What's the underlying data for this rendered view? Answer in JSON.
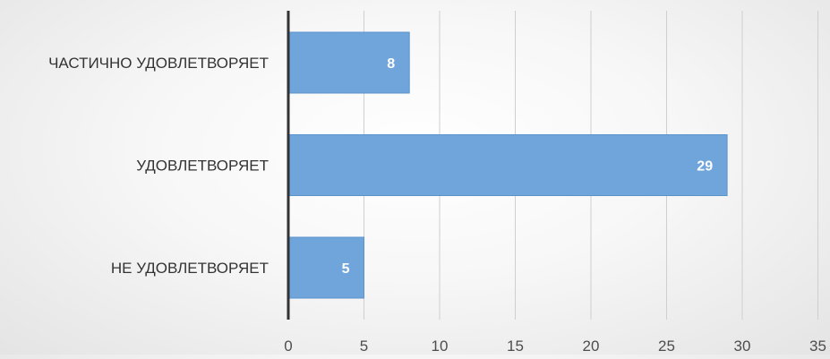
{
  "chart_data": {
    "type": "bar",
    "orientation": "horizontal",
    "categories": [
      "ЧАСТИЧНО УДОВЛЕТВОРЯЕТ",
      "УДОВЛЕТВОРЯЕТ",
      "НЕ УДОВЛЕТВОРЯЕТ"
    ],
    "values": [
      8,
      29,
      5
    ],
    "data_labels": [
      "8",
      "29",
      "5"
    ],
    "title": "",
    "xlabel": "",
    "ylabel": "",
    "xlim": [
      0,
      35
    ],
    "x_ticks": [
      "0",
      "5",
      "10",
      "15",
      "20",
      "25",
      "30",
      "35"
    ],
    "grid": "vertical",
    "legend": "none",
    "colors": {
      "bar": "#6fa5da",
      "bar_stroke": "#5b94cc",
      "data_label": "#ffffff",
      "gridline": "#cfcfcf",
      "axis": "#333333",
      "category_label": "#333333",
      "tick_label": "#4d4d4d"
    }
  }
}
